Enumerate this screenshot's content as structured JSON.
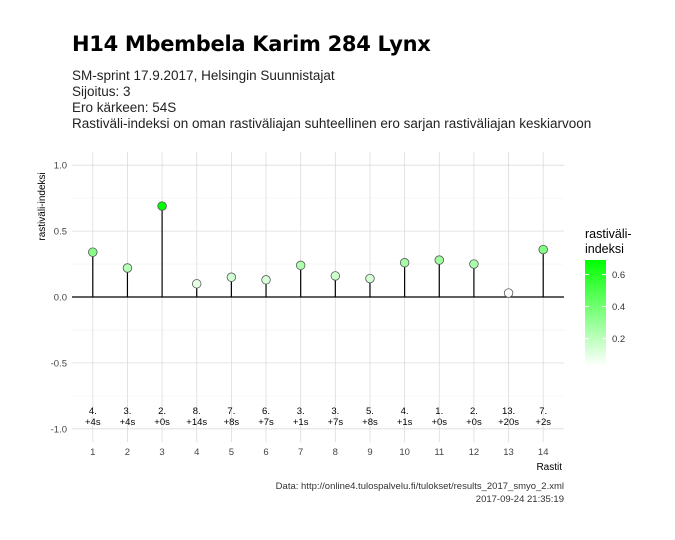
{
  "header": {
    "title": "H14 Mbembela Karim 284 Lynx",
    "subtitle_lines": [
      "SM-sprint 17.9.2017, Helsingin Suunnistajat",
      "Sijoitus: 3",
      "Ero kärkeen: 54S",
      "Rastiväli-indeksi on oman rastiväliajan suhteellinen ero sarjan rastiväliajan keskiarvoon"
    ]
  },
  "caption": {
    "source": "Data: http://online4.tulospalvelu.fi/tulokset/results_2017_smyo_2.xml",
    "timestamp": "2017-09-24 21:35:19"
  },
  "chart_data": {
    "type": "scatter",
    "style": "lollipop",
    "xlabel": "Rastit",
    "ylabel": "rastiväli-indeksi",
    "x": [
      1,
      2,
      3,
      4,
      5,
      6,
      7,
      8,
      9,
      10,
      11,
      12,
      13,
      14
    ],
    "values": [
      0.34,
      0.22,
      0.69,
      0.1,
      0.15,
      0.13,
      0.24,
      0.16,
      0.14,
      0.26,
      0.28,
      0.25,
      0.03,
      0.36
    ],
    "annotations_rank": [
      "4.",
      "3.",
      "2.",
      "8.",
      "7.",
      "6.",
      "3.",
      "3.",
      "5.",
      "4.",
      "1.",
      "2.",
      "13.",
      "7."
    ],
    "annotations_diff": [
      "+4s",
      "+4s",
      "+0s",
      "+14s",
      "+8s",
      "+7s",
      "+1s",
      "+7s",
      "+8s",
      "+1s",
      "+0s",
      "+0s",
      "+20s",
      "+2s"
    ],
    "ylim": [
      -1.1,
      1.1
    ],
    "xlim": [
      0.4,
      14.6
    ],
    "yticks": [
      -1.0,
      -0.5,
      0.0,
      0.5,
      1.0
    ],
    "ytick_labels": [
      "-1.0",
      "-0.5",
      "0.0",
      "0.5",
      "1.0"
    ],
    "xticks": [
      "1",
      "2",
      "3",
      "4",
      "5",
      "6",
      "7",
      "8",
      "9",
      "10",
      "11",
      "12",
      "13",
      "14"
    ],
    "grid": true,
    "legend": {
      "title_lines": [
        "rastiväli-",
        "indeksi"
      ],
      "ticks": [
        0.6,
        0.4,
        0.2
      ],
      "tick_labels": [
        "0.6",
        "0.4",
        "0.2"
      ],
      "range": [
        0.03,
        0.69
      ],
      "color_low": "#ffffff",
      "color_high": "#00ff00",
      "placement": "right"
    }
  }
}
